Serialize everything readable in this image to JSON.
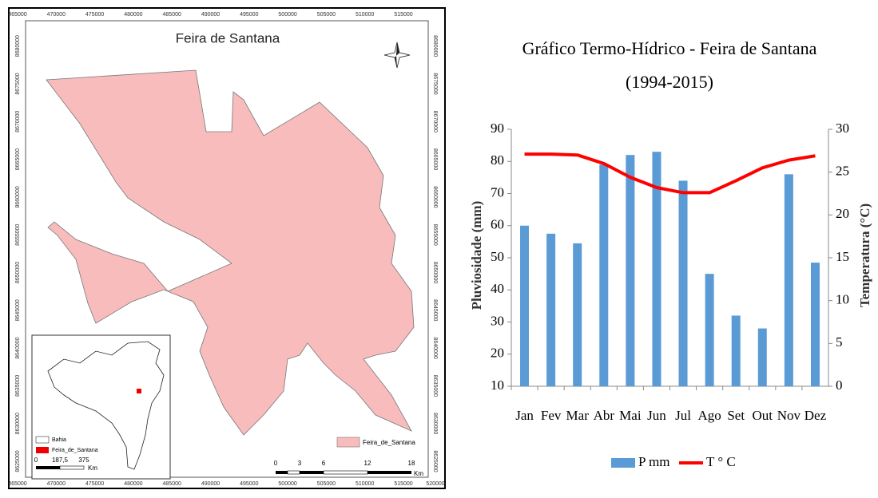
{
  "map": {
    "title": "Feira de Santana",
    "xticks": [
      465000,
      470000,
      475000,
      480000,
      485000,
      490000,
      495000,
      500000,
      505000,
      510000,
      515000
    ],
    "x_corner": 520000,
    "yticks": [
      8625000,
      8630000,
      8635000,
      8640000,
      8645000,
      8650000,
      8655000,
      8660000,
      8665000,
      8670000,
      8675000,
      8680000
    ],
    "legend": "Feira_de_Santana",
    "scale_labels": [
      "0",
      "3",
      "6",
      "12",
      "18"
    ],
    "scale_unit": "Km",
    "inset": {
      "legend": [
        "Bahia",
        "Feira_de_Santana"
      ],
      "scale_labels": [
        "0",
        "187,5",
        "375"
      ],
      "scale_unit": "Km"
    }
  },
  "chart_data": {
    "type": "bar",
    "title": "Gráfico  Termo-Hídrico  - Feira de Santana",
    "subtitle": "(1994-2015)",
    "ylabel": "Pluviosidade (mm)",
    "y2label": "Temperatura (°C)",
    "categories": [
      "Jan",
      "Fev",
      "Mar",
      "Abr",
      "Mai",
      "Jun",
      "Jul",
      "Ago",
      "Set",
      "Out",
      "Nov",
      "Dez"
    ],
    "series": [
      {
        "name": "P mm",
        "type": "bar",
        "color": "#5b9bd5",
        "values": [
          60,
          57.5,
          54.5,
          79,
          82,
          83,
          74,
          45,
          32,
          28,
          76,
          48.5
        ]
      },
      {
        "name": "T ° C",
        "type": "line",
        "axis": "y2",
        "color": "#ff0000",
        "values": [
          27.1,
          27.1,
          27.0,
          26.0,
          24.4,
          23.2,
          22.6,
          22.6,
          24.0,
          25.5,
          26.4,
          26.9
        ]
      }
    ],
    "ylim": [
      10,
      90
    ],
    "yticks": [
      10,
      20,
      30,
      40,
      50,
      60,
      70,
      80,
      90
    ],
    "y2lim": [
      0,
      30
    ],
    "y2ticks": [
      0,
      5,
      10,
      15,
      20,
      25,
      30
    ],
    "legend": "bottom"
  }
}
